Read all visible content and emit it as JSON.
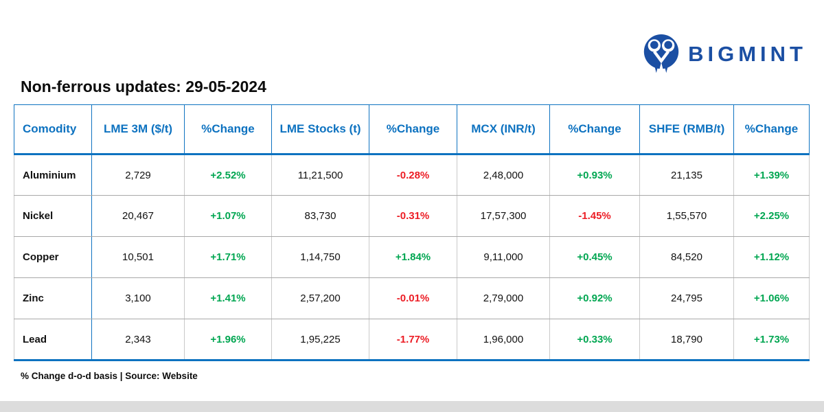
{
  "logo": {
    "text": "BIGMINT"
  },
  "title": "Non-ferrous updates: 29-05-2024",
  "footnote": "% Change d-o-d basis | Source: Website",
  "colors": {
    "header_blue": "#0d72c0",
    "logo_blue": "#1b4fa3",
    "positive_green": "#00a651",
    "negative_red": "#ec1c24"
  },
  "chart_data": {
    "type": "table",
    "title": "Non-ferrous updates: 29-05-2024",
    "columns": [
      "Comodity",
      "LME 3M ($/t)",
      "%Change",
      "LME Stocks (t)",
      "%Change",
      "MCX (INR/t)",
      "%Change",
      "SHFE (RMB/t)",
      "%Change"
    ],
    "rows": [
      {
        "commodity": "Aluminium",
        "values": [
          "2,729",
          "+2.52%",
          "11,21,500",
          "-0.28%",
          "2,48,000",
          "+0.93%",
          "21,135",
          "+1.39%"
        ]
      },
      {
        "commodity": "Nickel",
        "values": [
          "20,467",
          "+1.07%",
          "83,730",
          "-0.31%",
          "17,57,300",
          "-1.45%",
          "1,55,570",
          "+2.25%"
        ]
      },
      {
        "commodity": "Copper",
        "values": [
          "10,501",
          "+1.71%",
          "1,14,750",
          "+1.84%",
          "9,11,000",
          "+0.45%",
          "84,520",
          "+1.12%"
        ]
      },
      {
        "commodity": "Zinc",
        "values": [
          "3,100",
          "+1.41%",
          "2,57,200",
          "-0.01%",
          "2,79,000",
          "+0.92%",
          "24,795",
          "+1.06%"
        ]
      },
      {
        "commodity": "Lead",
        "values": [
          "2,343",
          "+1.96%",
          "1,95,225",
          "-1.77%",
          "1,96,000",
          "+0.33%",
          "18,790",
          "+1.73%"
        ]
      }
    ],
    "footnote": "% Change d-o-d basis | Source: Website"
  }
}
